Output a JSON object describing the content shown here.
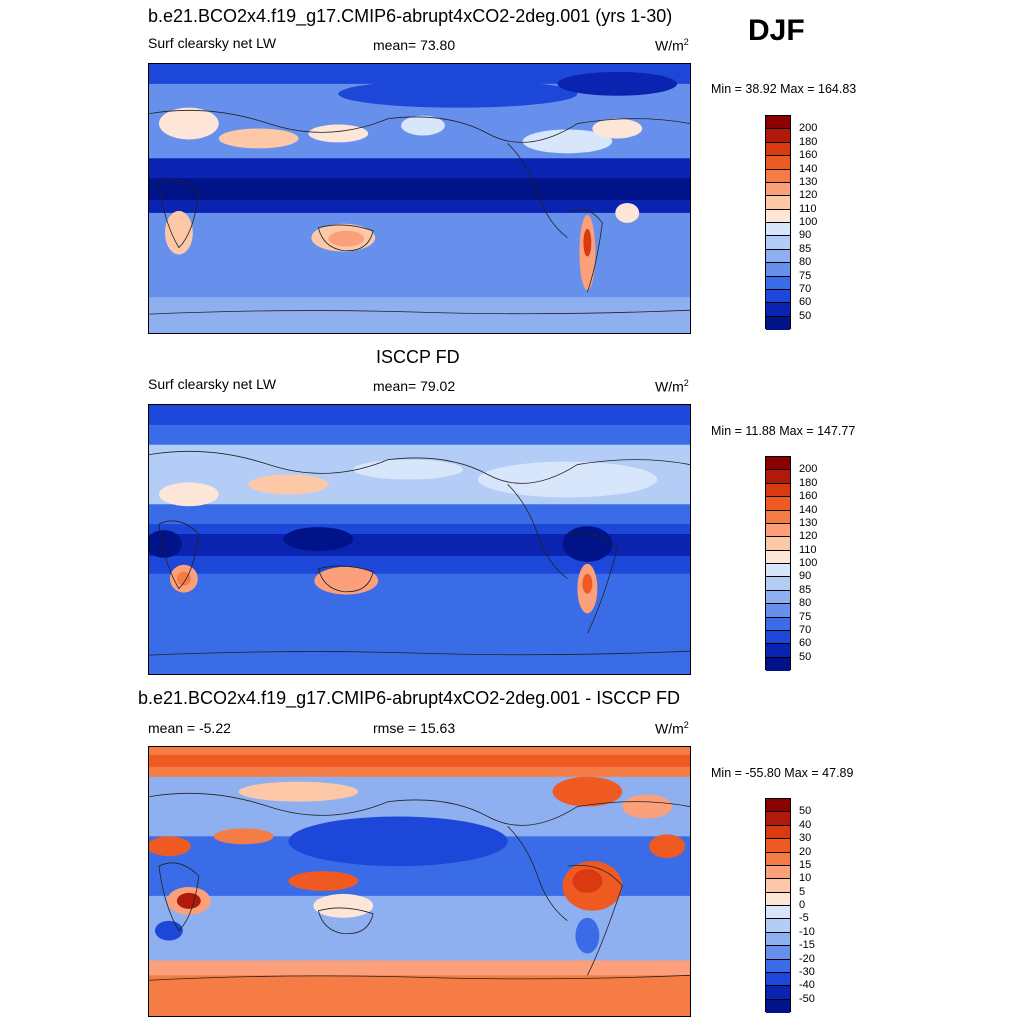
{
  "season": "DJF",
  "panels": [
    {
      "title": "b.e21.BCO2x4.f19_g17.CMIP6-abrupt4xCO2-2deg.001 (yrs 1-30)",
      "variable": "Surf clearsky net LW",
      "stat": "mean=  73.80",
      "units": "W/m",
      "units_sup": "2",
      "minmax": "Min =  38.92 Max = 164.83",
      "colorbar_labels": [
        "200",
        "180",
        "160",
        "140",
        "130",
        "120",
        "110",
        "100",
        "90",
        "85",
        "80",
        "75",
        "70",
        "60",
        "50"
      ],
      "colorbar_colors": [
        "#8b0000",
        "#b11a0a",
        "#d93a10",
        "#ef5a22",
        "#f57d45",
        "#fba07a",
        "#fcc8a8",
        "#fde6d8",
        "#d7e6fb",
        "#b4cdf6",
        "#8fb0f0",
        "#6690ec",
        "#3a6ce8",
        "#1c47d8",
        "#0a23b0",
        "#001388"
      ]
    },
    {
      "title": "ISCCP FD",
      "variable": "Surf clearsky net LW",
      "stat": "mean=  79.02",
      "units": "W/m",
      "units_sup": "2",
      "minmax": "Min =  11.88 Max = 147.77",
      "colorbar_labels": [
        "200",
        "180",
        "160",
        "140",
        "130",
        "120",
        "110",
        "100",
        "90",
        "85",
        "80",
        "75",
        "70",
        "60",
        "50"
      ],
      "colorbar_colors": [
        "#8b0000",
        "#b11a0a",
        "#d93a10",
        "#ef5a22",
        "#f57d45",
        "#fba07a",
        "#fcc8a8",
        "#fde6d8",
        "#d7e6fb",
        "#b4cdf6",
        "#8fb0f0",
        "#6690ec",
        "#3a6ce8",
        "#1c47d8",
        "#0a23b0",
        "#001388"
      ]
    },
    {
      "title": "b.e21.BCO2x4.f19_g17.CMIP6-abrupt4xCO2-2deg.001 - ISCCP FD",
      "stat_left": "mean =  -5.22",
      "stat": "rmse =  15.63",
      "units": "W/m",
      "units_sup": "2",
      "minmax": "Min = -55.80 Max =  47.89",
      "colorbar_labels": [
        "50",
        "40",
        "30",
        "20",
        "15",
        "10",
        "5",
        "0",
        "-5",
        "-10",
        "-15",
        "-20",
        "-30",
        "-40",
        "-50"
      ],
      "colorbar_colors": [
        "#8b0000",
        "#b11a0a",
        "#d93a10",
        "#ef5a22",
        "#f57d45",
        "#fba07a",
        "#fcc8a8",
        "#fde6d8",
        "#d7e6fb",
        "#b4cdf6",
        "#8fb0f0",
        "#6690ec",
        "#3a6ce8",
        "#1c47d8",
        "#0a23b0",
        "#001388"
      ]
    }
  ]
}
